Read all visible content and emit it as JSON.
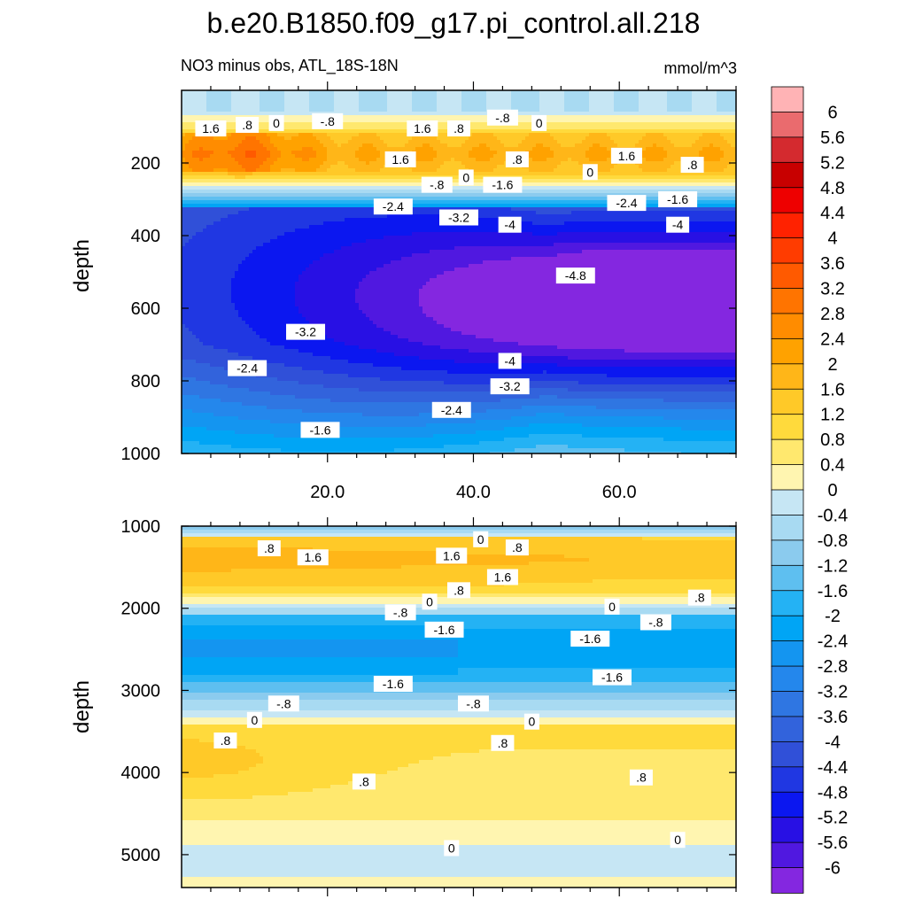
{
  "chart_data": {
    "type": "contour",
    "title": "b.e20.B1850.f09_g17.pi_control.all.218",
    "subtitle_left": "NO3 minus obs, ATL_18S-18N",
    "units": "mmol/m^3",
    "ylabel": "depth",
    "x_ticks": [
      "20.0",
      "40.0",
      "60.0"
    ],
    "x_tick_values": [
      20,
      40,
      60
    ],
    "xlim": [
      0,
      76
    ],
    "panels": [
      {
        "name": "upper",
        "ylim": [
          0,
          1000
        ],
        "y_ticks": [
          "200",
          "400",
          "600",
          "800",
          "1000"
        ],
        "y_tick_values": [
          200,
          400,
          600,
          800,
          1000
        ],
        "contour_labels": [
          {
            "text": "1.6",
            "x": 4,
            "y": 105
          },
          {
            "text": ".8",
            "x": 9,
            "y": 95
          },
          {
            "text": "0",
            "x": 13,
            "y": 90
          },
          {
            "text": "-.8",
            "x": 20,
            "y": 85
          },
          {
            "text": "1.6",
            "x": 33,
            "y": 105
          },
          {
            "text": ".8",
            "x": 38,
            "y": 105
          },
          {
            "text": "-.8",
            "x": 44,
            "y": 75
          },
          {
            "text": "0",
            "x": 49,
            "y": 90
          },
          {
            "text": "1.6",
            "x": 30,
            "y": 190
          },
          {
            "text": ".8",
            "x": 46,
            "y": 190
          },
          {
            "text": "1.6",
            "x": 61,
            "y": 180
          },
          {
            "text": "0",
            "x": 56,
            "y": 225
          },
          {
            "text": ".8",
            "x": 70,
            "y": 205
          },
          {
            "text": "-.8",
            "x": 35,
            "y": 260
          },
          {
            "text": "0",
            "x": 39,
            "y": 240
          },
          {
            "text": "-1.6",
            "x": 44,
            "y": 260
          },
          {
            "text": "-1.6",
            "x": 68,
            "y": 300
          },
          {
            "text": "-2.4",
            "x": 29,
            "y": 320
          },
          {
            "text": "-2.4",
            "x": 61,
            "y": 310
          },
          {
            "text": "-3.2",
            "x": 38,
            "y": 350
          },
          {
            "text": "-4",
            "x": 45,
            "y": 370
          },
          {
            "text": "-4",
            "x": 68,
            "y": 370
          },
          {
            "text": "-4.8",
            "x": 54,
            "y": 510
          },
          {
            "text": "-3.2",
            "x": 17,
            "y": 665
          },
          {
            "text": "-2.4",
            "x": 9,
            "y": 765
          },
          {
            "text": "-4",
            "x": 45,
            "y": 745
          },
          {
            "text": "-3.2",
            "x": 45,
            "y": 815
          },
          {
            "text": "-2.4",
            "x": 37,
            "y": 880
          },
          {
            "text": "-1.6",
            "x": 19,
            "y": 935
          }
        ]
      },
      {
        "name": "lower",
        "ylim": [
          1000,
          5400
        ],
        "y_ticks": [
          "1000",
          "2000",
          "3000",
          "4000",
          "5000"
        ],
        "y_tick_values": [
          1000,
          2000,
          3000,
          4000,
          5000
        ],
        "contour_labels": [
          {
            "text": ".8",
            "x": 12,
            "y": 1270
          },
          {
            "text": "1.6",
            "x": 18,
            "y": 1380
          },
          {
            "text": "0",
            "x": 41,
            "y": 1160
          },
          {
            "text": ".8",
            "x": 46,
            "y": 1260
          },
          {
            "text": "1.6",
            "x": 37,
            "y": 1360
          },
          {
            "text": "1.6",
            "x": 44,
            "y": 1620
          },
          {
            "text": ".8",
            "x": 38,
            "y": 1780
          },
          {
            "text": "0",
            "x": 34,
            "y": 1920
          },
          {
            "text": "-.8",
            "x": 30,
            "y": 2050
          },
          {
            "text": "0",
            "x": 59,
            "y": 1980
          },
          {
            "text": ".8",
            "x": 71,
            "y": 1870
          },
          {
            "text": "-.8",
            "x": 65,
            "y": 2170
          },
          {
            "text": "-1.6",
            "x": 36,
            "y": 2260
          },
          {
            "text": "-1.6",
            "x": 56,
            "y": 2370
          },
          {
            "text": "-1.6",
            "x": 59,
            "y": 2840
          },
          {
            "text": "-1.6",
            "x": 29,
            "y": 2920
          },
          {
            "text": "-.8",
            "x": 14,
            "y": 3160
          },
          {
            "text": "-.8",
            "x": 40,
            "y": 3160
          },
          {
            "text": "0",
            "x": 10,
            "y": 3360
          },
          {
            "text": "0",
            "x": 48,
            "y": 3380
          },
          {
            "text": ".8",
            "x": 6,
            "y": 3610
          },
          {
            "text": ".8",
            "x": 44,
            "y": 3640
          },
          {
            "text": ".8",
            "x": 25,
            "y": 4110
          },
          {
            "text": ".8",
            "x": 63,
            "y": 4060
          },
          {
            "text": "0",
            "x": 37,
            "y": 4920
          },
          {
            "text": "0",
            "x": 68,
            "y": 4820
          }
        ]
      }
    ],
    "colorbar": {
      "labels": [
        "6",
        "5.6",
        "5.2",
        "4.8",
        "4.4",
        "4",
        "3.6",
        "3.2",
        "2.8",
        "2.4",
        "2",
        "1.6",
        "1.2",
        "0.8",
        "0.4",
        "0",
        "-0.4",
        "-0.8",
        "-1.2",
        "-1.6",
        "-2",
        "-2.4",
        "-2.8",
        "-3.2",
        "-3.6",
        "-4",
        "-4.4",
        "-4.8",
        "-5.2",
        "-5.6",
        "-6"
      ],
      "colors": [
        "#ffb3b5",
        "#ea6b6e",
        "#d42a2f",
        "#c80000",
        "#ee0000",
        "#ff2200",
        "#ff3c00",
        "#ff5a00",
        "#ff7400",
        "#ff8c00",
        "#ffa200",
        "#ffb618",
        "#ffc928",
        "#ffda3c",
        "#ffe86e",
        "#fff5b0",
        "#c6e6f4",
        "#a8daf2",
        "#8bcbee",
        "#5ebff0",
        "#24b2f4",
        "#00a5f5",
        "#1495f0",
        "#2487ec",
        "#2f76e2",
        "#3263dc",
        "#3050d8",
        "#2037e2",
        "#0b17f0",
        "#2810e4",
        "#5018e0",
        "#8427e0"
      ]
    },
    "fields": {
      "upper": {
        "surface": -0.4,
        "max_core": 3.1,
        "deep_min": -5.6
      },
      "lower": {
        "upper_pos": 1.9,
        "mid_neg": -2.5,
        "deep_pos": 1.5
      }
    }
  }
}
